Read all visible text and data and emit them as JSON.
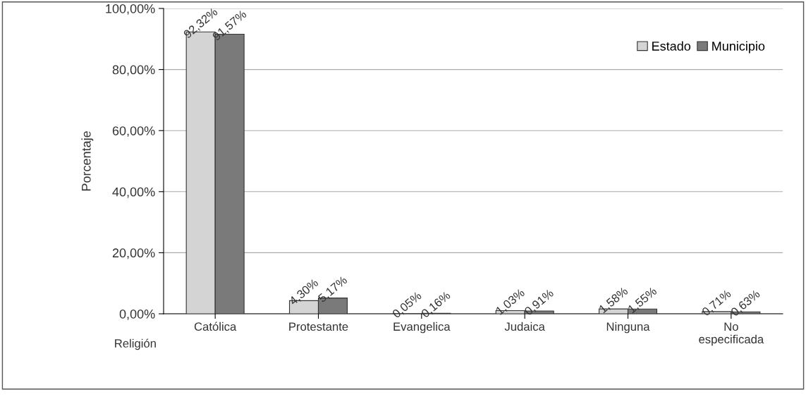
{
  "chart_data": {
    "type": "bar",
    "ylabel": "Porcentaje",
    "xlabel": "Religión",
    "categories": [
      "Católica",
      "Protestante",
      "Evangelica",
      "Judaica",
      "Ninguna",
      "No\nespecificada"
    ],
    "series": [
      {
        "name": "Estado",
        "color": "#d4d4d4",
        "values": [
          92.32,
          4.3,
          0.05,
          1.03,
          1.58,
          0.71
        ],
        "value_labels": [
          "92,32%",
          "4,30%",
          "0,05%",
          "1,03%",
          "1,58%",
          "0,71%"
        ]
      },
      {
        "name": "Municipio",
        "color": "#7a7a7a",
        "values": [
          91.57,
          5.17,
          0.16,
          0.91,
          1.55,
          0.63
        ],
        "value_labels": [
          "91,57%",
          "5,17%",
          "0,16%",
          "0,91%",
          "1,55%",
          "0,63%"
        ]
      }
    ],
    "ylim": [
      0,
      100
    ],
    "yticks": [
      {
        "value": 0,
        "label": "0,00%"
      },
      {
        "value": 20,
        "label": "20,00%"
      },
      {
        "value": 40,
        "label": "40,00%"
      },
      {
        "value": 60,
        "label": "60,00%"
      },
      {
        "value": 80,
        "label": "80,00%"
      },
      {
        "value": 100,
        "label": "100,00%"
      }
    ],
    "grid": "y",
    "legend": "top right"
  }
}
